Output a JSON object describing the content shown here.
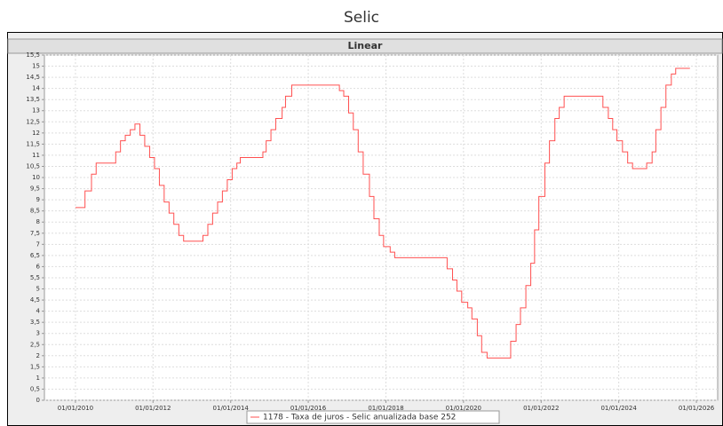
{
  "chart_data": {
    "type": "line",
    "title": "Selic",
    "subtitle": "Linear",
    "step": true,
    "grid": true,
    "legend": "bottom",
    "x": [
      "2010-01-01",
      "2010-04-01",
      "2010-06-01",
      "2010-07-15",
      "2011-01-15",
      "2011-03-01",
      "2011-04-15",
      "2011-06-01",
      "2011-07-15",
      "2011-08-31",
      "2011-10-15",
      "2011-12-01",
      "2012-01-15",
      "2012-03-01",
      "2012-04-15",
      "2012-05-31",
      "2012-07-15",
      "2012-08-31",
      "2012-10-15",
      "2013-04-15",
      "2013-05-31",
      "2013-07-15",
      "2013-08-31",
      "2013-10-15",
      "2013-11-30",
      "2014-01-15",
      "2014-02-28",
      "2014-04-01",
      "2014-10-31",
      "2014-12-01",
      "2015-01-15",
      "2015-03-01",
      "2015-04-30",
      "2015-06-01",
      "2015-07-30",
      "2016-10-20",
      "2016-11-30",
      "2017-01-15",
      "2017-02-28",
      "2017-04-15",
      "2017-06-01",
      "2017-07-30",
      "2017-09-10",
      "2017-10-30",
      "2017-12-10",
      "2018-02-10",
      "2018-03-25",
      "2019-07-31",
      "2019-09-20",
      "2019-10-31",
      "2019-12-15",
      "2020-02-10",
      "2020-03-20",
      "2020-05-10",
      "2020-06-20",
      "2020-08-10",
      "2021-03-20",
      "2021-05-10",
      "2021-06-20",
      "2021-08-10",
      "2021-09-25",
      "2021-10-31",
      "2021-12-10",
      "2022-02-05",
      "2022-03-20",
      "2022-05-10",
      "2022-06-20",
      "2022-08-05",
      "2023-08-05",
      "2023-09-25",
      "2023-11-05",
      "2023-12-15",
      "2024-02-05",
      "2024-03-25",
      "2024-05-10",
      "2024-09-20",
      "2024-11-10",
      "2024-12-15",
      "2025-02-01",
      "2025-03-20",
      "2025-05-10",
      "2025-06-20",
      "2025-11-01"
    ],
    "series": [
      {
        "name": "1178 - Taxa de juros - Selic anualizada base 252",
        "color": "#ff5050",
        "values": [
          8.65,
          9.4,
          10.15,
          10.65,
          11.15,
          11.65,
          11.9,
          12.15,
          12.4,
          11.9,
          11.4,
          10.9,
          10.4,
          9.65,
          8.9,
          8.4,
          7.9,
          7.4,
          7.14,
          7.4,
          7.9,
          8.4,
          8.9,
          9.4,
          9.9,
          10.4,
          10.65,
          10.9,
          11.15,
          11.65,
          12.15,
          12.65,
          13.15,
          13.65,
          14.15,
          13.9,
          13.65,
          12.9,
          12.15,
          11.15,
          10.15,
          9.15,
          8.15,
          7.4,
          6.9,
          6.65,
          6.4,
          5.9,
          5.4,
          4.9,
          4.4,
          4.15,
          3.65,
          2.9,
          2.15,
          1.9,
          2.65,
          3.4,
          4.15,
          5.15,
          6.15,
          7.65,
          9.15,
          10.65,
          11.65,
          12.65,
          13.15,
          13.65,
          13.15,
          12.65,
          12.15,
          11.65,
          11.15,
          10.65,
          10.4,
          10.65,
          11.15,
          12.15,
          13.15,
          14.15,
          14.65,
          14.9,
          14.9
        ]
      }
    ],
    "xlim": [
      "2009-03-15",
      "2026-07-20"
    ],
    "xticks": [
      {
        "value": "2010-01-01",
        "label": "01/01/2010"
      },
      {
        "value": "2012-01-01",
        "label": "01/01/2012"
      },
      {
        "value": "2014-01-01",
        "label": "01/01/2014"
      },
      {
        "value": "2016-01-01",
        "label": "01/01/2016"
      },
      {
        "value": "2018-01-01",
        "label": "01/01/2018"
      },
      {
        "value": "2020-01-01",
        "label": "01/01/2020"
      },
      {
        "value": "2022-01-01",
        "label": "01/01/2022"
      },
      {
        "value": "2024-01-01",
        "label": "01/01/2024"
      },
      {
        "value": "2026-01-01",
        "label": "01/01/2026"
      }
    ],
    "ylim": [
      0,
      15.5
    ],
    "yticks": [
      0,
      {
        "value": 0.5,
        "label": "0,5"
      },
      1,
      {
        "value": 1.5,
        "label": "1,5"
      },
      2,
      {
        "value": 2.5,
        "label": "2,5"
      },
      3,
      {
        "value": 3.5,
        "label": "3,5"
      },
      4,
      {
        "value": 4.5,
        "label": "4,5"
      },
      5,
      {
        "value": 5.5,
        "label": "5,5"
      },
      6,
      {
        "value": 6.5,
        "label": "6,5"
      },
      7,
      {
        "value": 7.5,
        "label": "7,5"
      },
      8,
      {
        "value": 8.5,
        "label": "8,5"
      },
      9,
      {
        "value": 9.5,
        "label": "9,5"
      },
      10,
      {
        "value": 10.5,
        "label": "10,5"
      },
      11,
      {
        "value": 11.5,
        "label": "11,5"
      },
      12,
      {
        "value": 12.5,
        "label": "12,5"
      },
      13,
      {
        "value": 13.5,
        "label": "13,5"
      },
      14,
      {
        "value": 14.5,
        "label": "14,5"
      },
      15,
      {
        "value": 15.5,
        "label": "15,5"
      }
    ]
  }
}
